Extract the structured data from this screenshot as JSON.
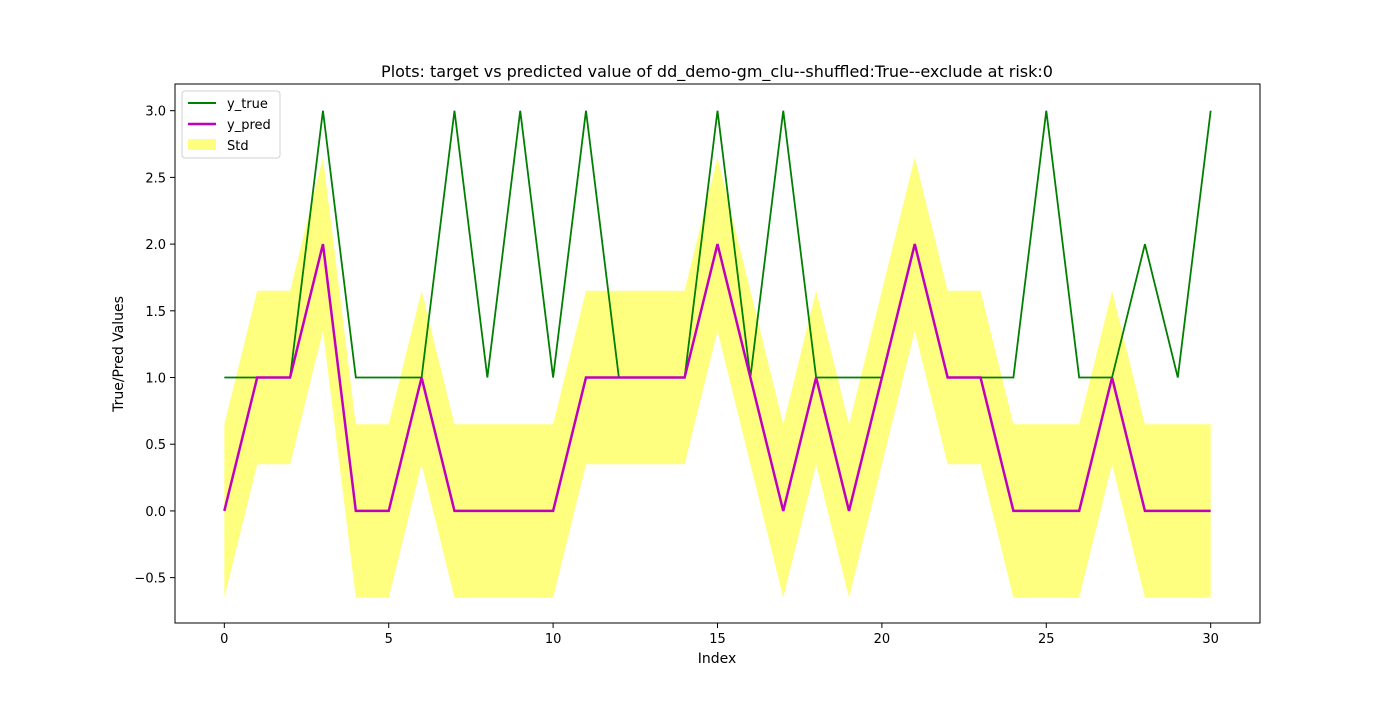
{
  "chart_data": {
    "type": "line",
    "title": "Plots: target vs predicted value of dd_demo-gm_clu--shuffled:True--exclude at risk:0",
    "xlabel": "Index",
    "ylabel": "True/Pred Values",
    "xlim": [
      -1.5,
      31.5
    ],
    "ylim": [
      -0.84,
      3.2
    ],
    "xticks": [
      0,
      5,
      10,
      15,
      20,
      25,
      30
    ],
    "yticks": [
      -0.5,
      0.0,
      0.5,
      1.0,
      1.5,
      2.0,
      2.5,
      3.0
    ],
    "xtick_labels": [
      "0",
      "5",
      "10",
      "15",
      "20",
      "25",
      "30"
    ],
    "ytick_labels": [
      "−0.5",
      "0.0",
      "0.5",
      "1.0",
      "1.5",
      "2.0",
      "2.5",
      "3.0"
    ],
    "grid": false,
    "legend_position": "top-left",
    "x": [
      0,
      1,
      2,
      3,
      4,
      5,
      6,
      7,
      8,
      9,
      10,
      11,
      12,
      13,
      14,
      15,
      16,
      17,
      18,
      19,
      20,
      21,
      22,
      23,
      24,
      25,
      26,
      27,
      28,
      29,
      30
    ],
    "series": [
      {
        "name": "y_true",
        "kind": "line",
        "color": "#008000",
        "values": [
          1,
          1,
          1,
          3,
          1,
          1,
          1,
          3,
          1,
          3,
          1,
          3,
          1,
          1,
          1,
          3,
          1,
          3,
          1,
          1,
          1,
          2,
          1,
          1,
          1,
          3,
          1,
          1,
          2,
          1,
          3
        ]
      },
      {
        "name": "y_pred",
        "kind": "line",
        "color": "#bf00bf",
        "values": [
          0,
          1,
          1,
          2,
          0,
          0,
          1,
          0,
          0,
          0,
          0,
          1,
          1,
          1,
          1,
          2,
          1,
          0,
          1,
          0,
          1,
          2,
          1,
          1,
          0,
          0,
          0,
          1,
          0,
          0,
          0
        ]
      },
      {
        "name": "Std",
        "kind": "band",
        "color": "#ffff7f",
        "lower": [
          -0.65,
          0.35,
          0.35,
          1.35,
          -0.65,
          -0.65,
          0.35,
          -0.65,
          -0.65,
          -0.65,
          -0.65,
          0.35,
          0.35,
          0.35,
          0.35,
          1.35,
          0.35,
          -0.65,
          0.35,
          -0.65,
          0.35,
          1.35,
          0.35,
          0.35,
          -0.65,
          -0.65,
          -0.65,
          0.35,
          -0.65,
          -0.65,
          -0.65
        ],
        "upper": [
          0.65,
          1.65,
          1.65,
          2.65,
          0.65,
          0.65,
          1.65,
          0.65,
          0.65,
          0.65,
          0.65,
          1.65,
          1.65,
          1.65,
          1.65,
          2.65,
          1.65,
          0.65,
          1.65,
          0.65,
          1.65,
          2.65,
          1.65,
          1.65,
          0.65,
          0.65,
          0.65,
          1.65,
          0.65,
          0.65,
          0.65
        ]
      }
    ]
  }
}
